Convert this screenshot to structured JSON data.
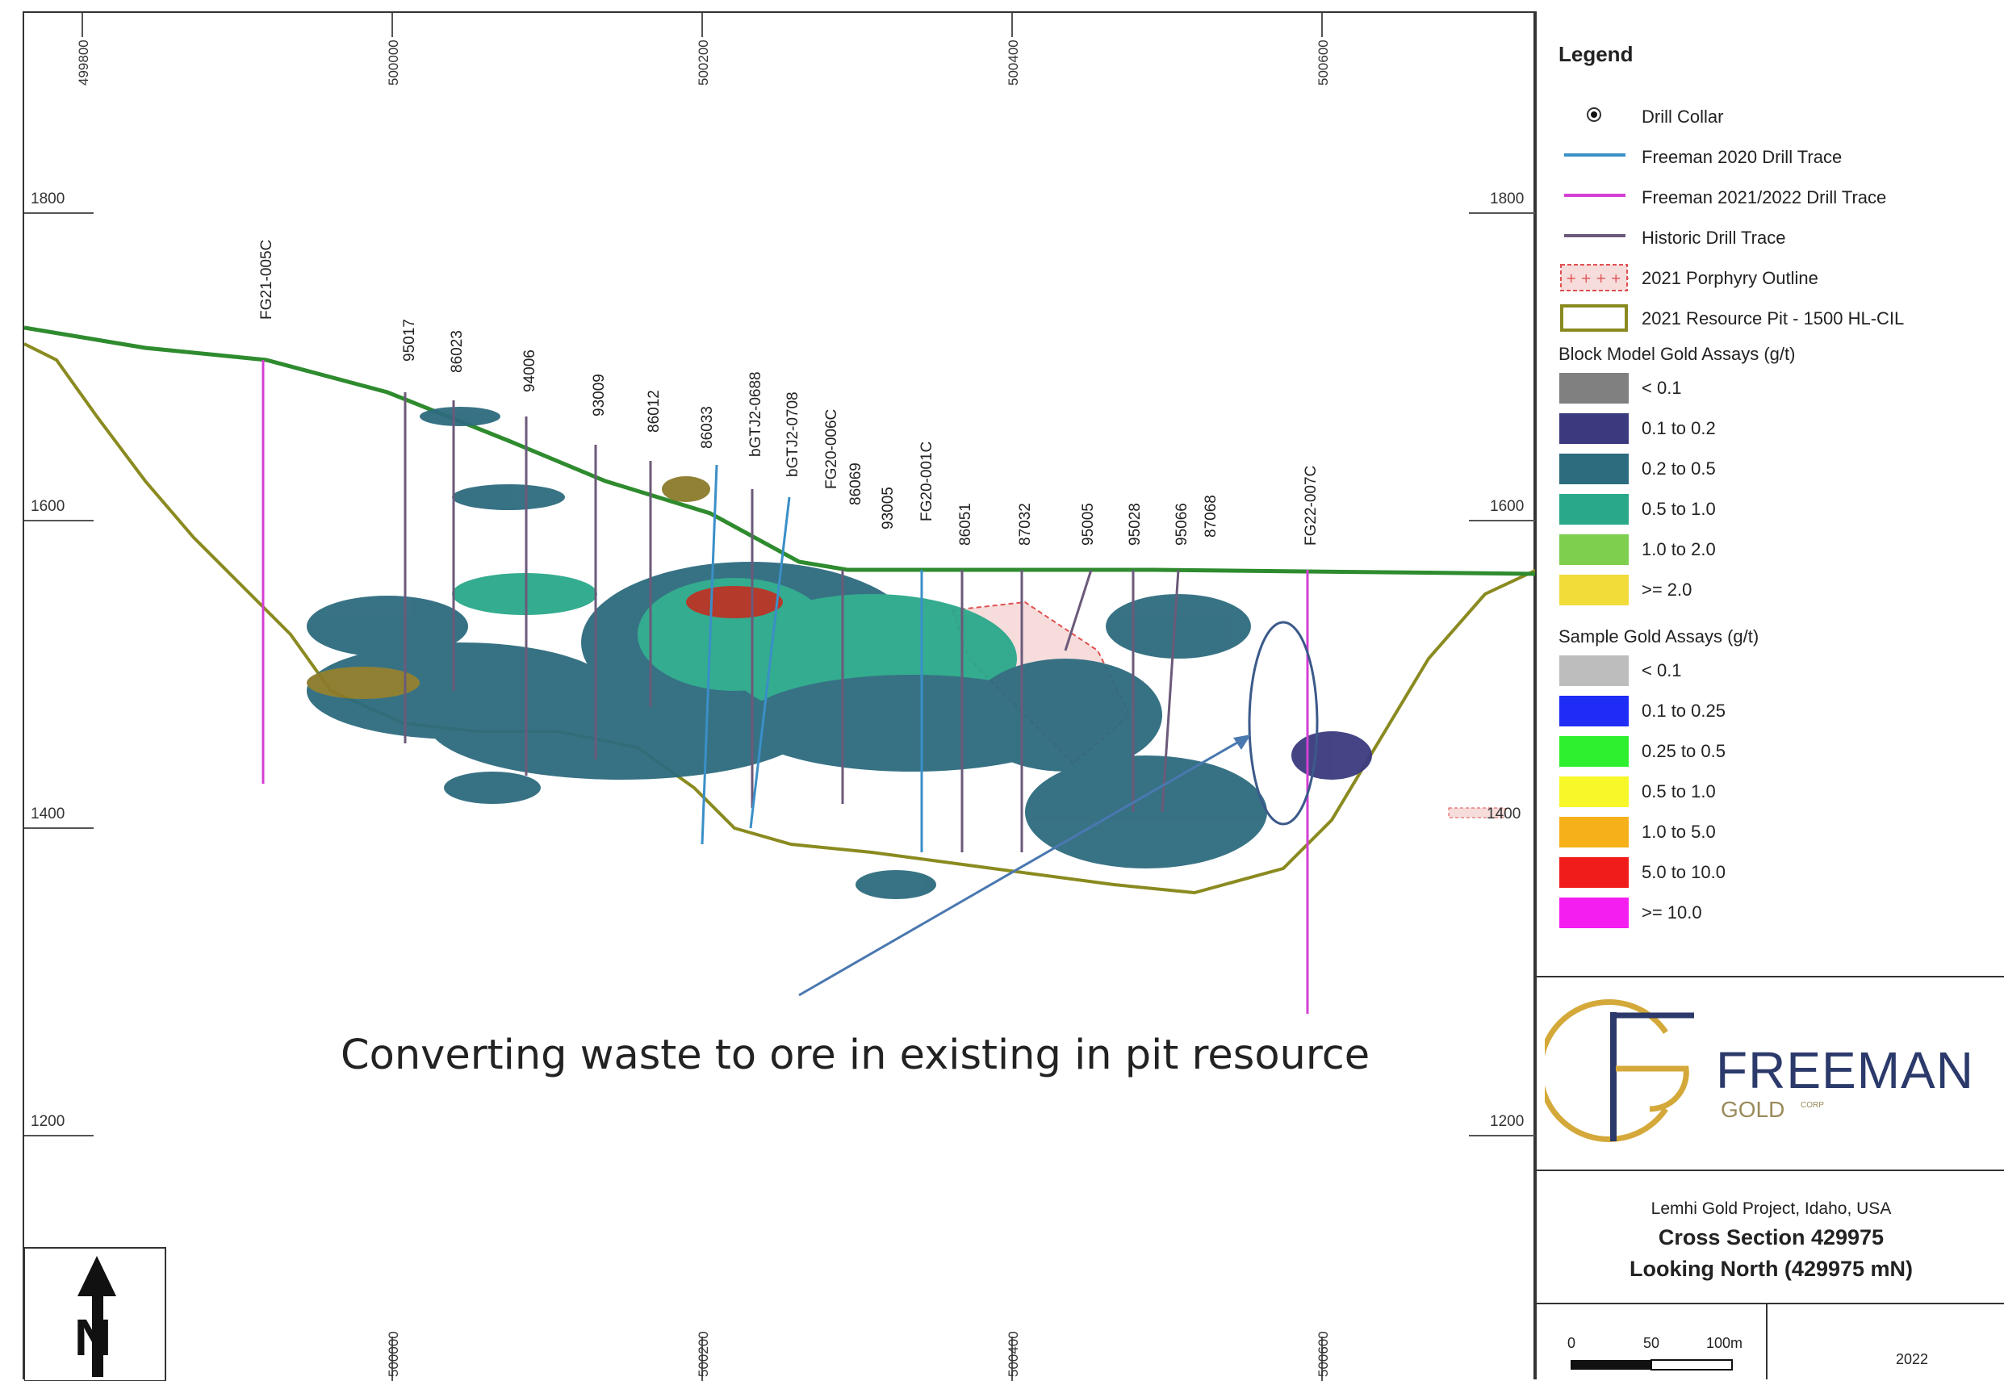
{
  "map": {
    "easting_ticks_top": [
      "499800",
      "500000",
      "500200",
      "500400",
      "500600"
    ],
    "easting_ticks_bottom": [
      "500000",
      "500200",
      "500400",
      "500600"
    ],
    "elevation_ticks": [
      "1800",
      "1600",
      "1400",
      "1200"
    ],
    "elevation_ticks_right_extra": "1400",
    "drill_holes": [
      "FG21-005C",
      "95017",
      "86023",
      "94006",
      "93009",
      "86012",
      "86033",
      "bGTJ2-0688",
      "bGTJ2-0708",
      "FG20-006C",
      "86069",
      "93005",
      "FG20-001C",
      "86051",
      "87032",
      "95005",
      "95028",
      "95066",
      "87068",
      "FG22-007C"
    ],
    "caption": "Converting waste to ore in existing in pit resource",
    "north_arrow_letter": "N"
  },
  "legend": {
    "title": "Legend",
    "items": [
      {
        "label": "Drill Collar",
        "icon": "dot-icon"
      },
      {
        "label": "Freeman 2020 Drill Trace",
        "color": "#3a8fc8"
      },
      {
        "label": "Freeman 2021/2022 Drill Trace",
        "color": "#d43fd4"
      },
      {
        "label": "Historic Drill Trace",
        "color": "#6b5a7a"
      },
      {
        "label": "2021  Porphyry Outline",
        "color": "#e05050"
      },
      {
        "label": "2021 Resource Pit - 1500 HL-CIL",
        "color": "#8a8a20"
      }
    ],
    "block_title": "Block Model Gold Assays (g/t)",
    "block_items": [
      {
        "label": "< 0.1",
        "color": "#808080"
      },
      {
        "label": "0.1 to 0.2",
        "color": "#3b3a7e"
      },
      {
        "label": "0.2 to 0.5",
        "color": "#2d6b7e"
      },
      {
        "label": "0.5 to 1.0",
        "color": "#2aa88a"
      },
      {
        "label": "1.0 to 2.0",
        "color": "#7ecf4e"
      },
      {
        "label": ">= 2.0",
        "color": "#f2dc3a"
      }
    ],
    "sample_title": "Sample Gold Assays (g/t)",
    "sample_items": [
      {
        "label": "< 0.1",
        "color": "#bdbdbd"
      },
      {
        "label": "0.1 to 0.25",
        "color": "#1f2cf5"
      },
      {
        "label": "0.25 to 0.5",
        "color": "#2ef02e"
      },
      {
        "label": "0.5 to 1.0",
        "color": "#f7f72a"
      },
      {
        "label": "1.0 to 5.0",
        "color": "#f5b01a"
      },
      {
        "label": "5.0 to 10.0",
        "color": "#f01c1c"
      },
      {
        "label": ">= 10.0",
        "color": "#f41ef0"
      }
    ]
  },
  "logo": {
    "name": "FREEMAN",
    "sub": "GOLD",
    "corp": "CORP",
    "accent": "#d4a93a",
    "brand": "#2b3a6b"
  },
  "title_block": {
    "project": "Lemhi Gold Project, Idaho, USA",
    "section": "Cross Section 429975",
    "looking": "Looking North (429975 mN)"
  },
  "scale_bar": {
    "labels": [
      "0",
      "50",
      "100m"
    ]
  },
  "year": "2022"
}
